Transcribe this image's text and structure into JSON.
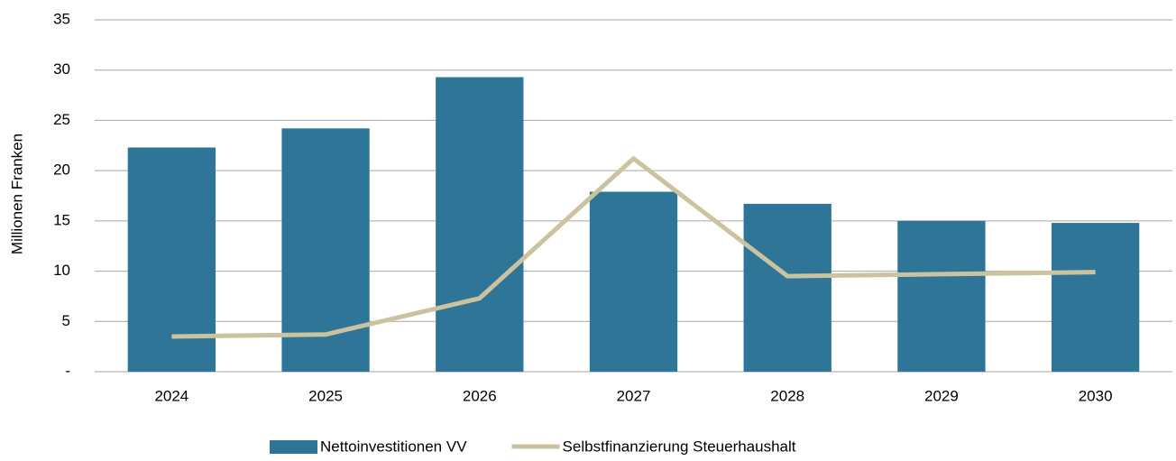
{
  "chart_data": {
    "type": "bar_line",
    "y_label": "Millionen Franken",
    "categories": [
      "2024",
      "2025",
      "2026",
      "2027",
      "2028",
      "2029",
      "2030"
    ],
    "series": [
      {
        "name": "Nettoinvestitionen VV",
        "type": "bar",
        "color": "#2e7597",
        "values": [
          22.3,
          24.2,
          29.3,
          17.9,
          16.7,
          15.0,
          14.8
        ]
      },
      {
        "name": "Selbstfinanzierung Steuerhaushalt",
        "type": "line",
        "color": "#cbc3a0",
        "values": [
          3.5,
          3.7,
          7.3,
          21.2,
          9.5,
          9.7,
          9.9
        ]
      }
    ],
    "ylim": [
      0,
      35
    ],
    "yticks": [
      {
        "value": 0,
        "label": "-"
      },
      5,
      10,
      15,
      20,
      25,
      30,
      35
    ],
    "grid": true,
    "legend": "bottom"
  }
}
